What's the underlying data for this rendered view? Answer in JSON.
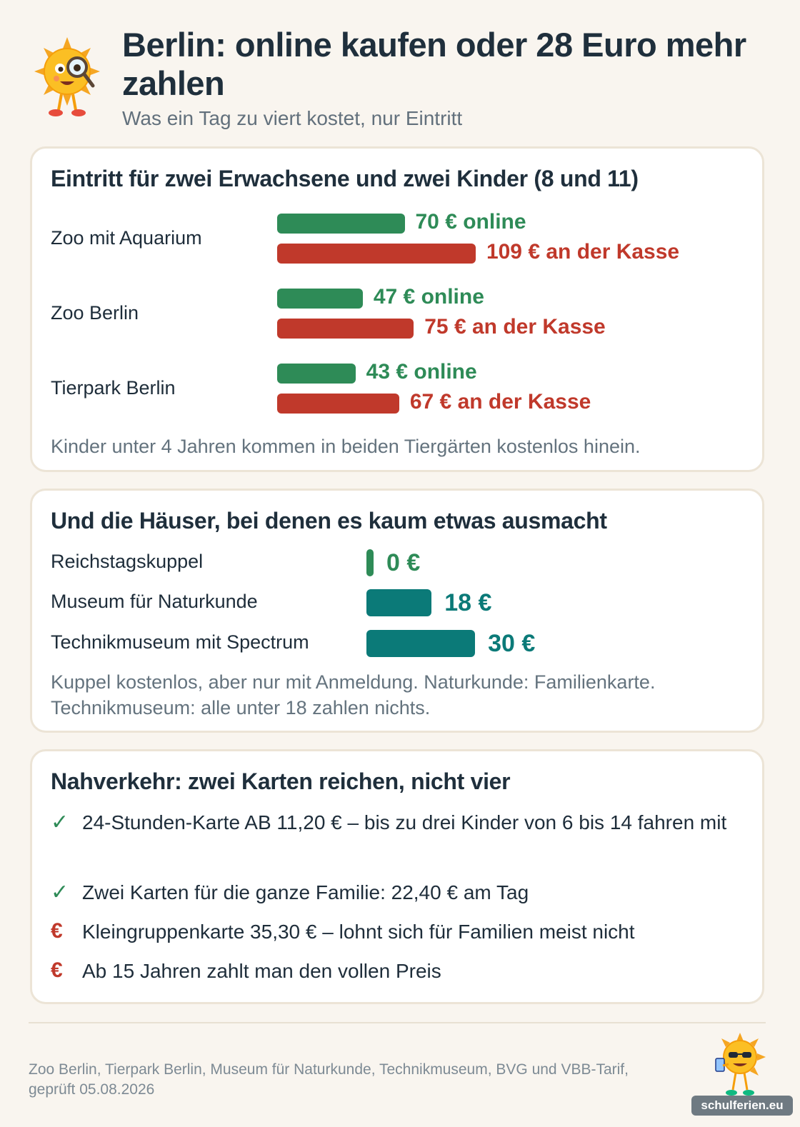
{
  "header": {
    "title": "Berlin: online kaufen oder 28 Euro mehr zahlen",
    "subtitle": "Was ein Tag zu viert kostet, nur Eintritt"
  },
  "colors": {
    "online": "#2e8b57",
    "kasse": "#c0392b",
    "museum": "#0b7a78",
    "background": "#f9f5ef"
  },
  "chart_data": [
    {
      "type": "bar",
      "title": "Eintritt für zwei Erwachsene und zwei Kinder (8 und 11)",
      "categories": [
        "Zoo mit Aquarium",
        "Zoo Berlin",
        "Tierpark Berlin"
      ],
      "series": [
        {
          "name": "online",
          "values": [
            70,
            47,
            43
          ],
          "labels": [
            "70 € online",
            "47 € online",
            "43 € online"
          ]
        },
        {
          "name": "an der Kasse",
          "values": [
            109,
            75,
            67
          ],
          "labels": [
            "109 € an der Kasse",
            "75 € an der Kasse",
            "67 € an der Kasse"
          ]
        }
      ],
      "note": "Kinder unter 4 Jahren kommen in beiden Tiergärten kostenlos hinein."
    },
    {
      "type": "bar",
      "title": "Und die Häuser, bei denen es kaum etwas ausmacht",
      "categories": [
        "Reichstagskuppel",
        "Museum für Naturkunde",
        "Technikmuseum mit Spectrum"
      ],
      "values": [
        0,
        18,
        30
      ],
      "labels": [
        "0 €",
        "18 €",
        "30 €"
      ],
      "note_lines": [
        "Kuppel kostenlos, aber nur mit Anmeldung. Naturkunde: Familienkarte.",
        "Technikmuseum: alle unter 18 zahlen nichts."
      ]
    }
  ],
  "transit": {
    "title": "Nahverkehr: zwei Karten reichen, nicht vier",
    "items": [
      {
        "icon": "check-icon",
        "symbol": "✓",
        "text": "24-Stunden-Karte AB 11,20 € – bis zu drei Kinder von 6 bis 14 fahren mit"
      },
      {
        "icon": "check-icon",
        "symbol": "✓",
        "text": "Zwei Karten für die ganze Familie: 22,40 € am Tag"
      },
      {
        "icon": "euro-icon",
        "symbol": "€",
        "text": "Kleingruppenkarte 35,30 € – lohnt sich für Familien meist nicht"
      },
      {
        "icon": "euro-icon",
        "symbol": "€",
        "text": "Ab 15 Jahren zahlt man den vollen Preis"
      }
    ]
  },
  "footer": {
    "source": "Zoo Berlin, Tierpark Berlin, Museum für Naturkunde, Technikmuseum, BVG und VBB-Tarif, geprüft 05.08.2026",
    "brand": "schulferien.eu"
  }
}
